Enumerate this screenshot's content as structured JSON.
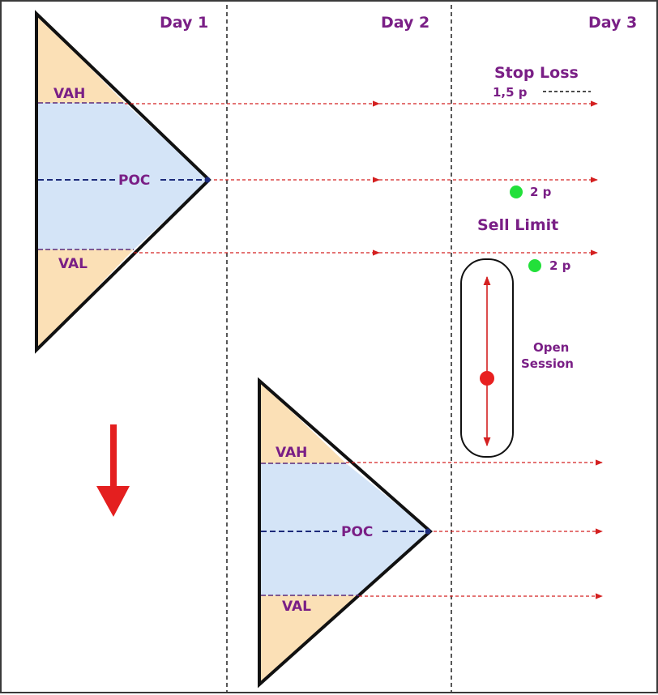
{
  "days": [
    "Day 1",
    "Day 2",
    "Day 3"
  ],
  "profiles": [
    {
      "vah": "VAH",
      "poc": "POC",
      "val": "VAL"
    },
    {
      "vah": "VAH",
      "poc": "POC",
      "val": "VAL"
    }
  ],
  "stop_loss": {
    "label": "Stop Loss",
    "offset": "1,5 p"
  },
  "sell_limit": {
    "label": "Sell Limit",
    "offset_above": "2 p",
    "offset_below": "2 p"
  },
  "open_session": {
    "line1": "Open",
    "line2": "Session"
  },
  "colors": {
    "value_area": "#d4e4f7",
    "tails": "#fbe0b6",
    "outline": "#111111",
    "projection_line": "#d42020",
    "poc_line": "#1c2a7a",
    "label_text": "#7a1f86",
    "marker_green": "#22e03a",
    "marker_red": "#e82020",
    "down_arrow": "#e41f1f"
  },
  "icons": {
    "trend": "arrow-down-icon",
    "open_marker": "dot-icon",
    "limit_marker": "dot-icon"
  }
}
